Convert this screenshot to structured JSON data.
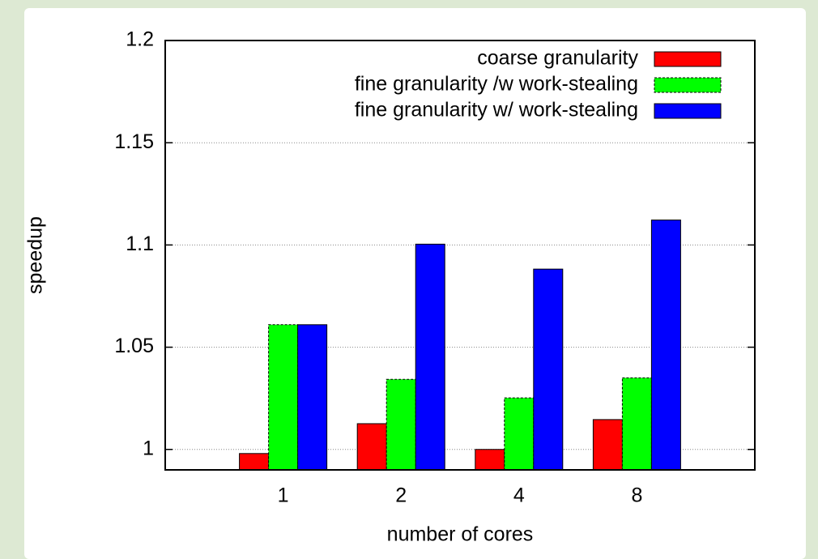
{
  "chart_data": {
    "type": "bar",
    "x_label": "number of cores",
    "y_label": "speedup",
    "categories": [
      "1",
      "2",
      "4",
      "8"
    ],
    "series": [
      {
        "name": "coarse granularity",
        "color": "#ff0000",
        "values": [
          0.998,
          1.0126,
          1.0,
          1.0146
        ]
      },
      {
        "name": "fine granularity /w work-stealing",
        "color": "#00ff00",
        "values": [
          1.061,
          1.0343,
          1.0252,
          1.035
        ]
      },
      {
        "name": "fine granularity w/ work-stealing",
        "color": "#0000ff",
        "values": [
          1.061,
          1.1004,
          1.0882,
          1.1122
        ]
      }
    ],
    "ylim": [
      0.99,
      1.2
    ],
    "yticks": [
      1,
      1.05,
      1.1,
      1.15,
      1.2
    ],
    "grid": true,
    "legend": "top right"
  }
}
